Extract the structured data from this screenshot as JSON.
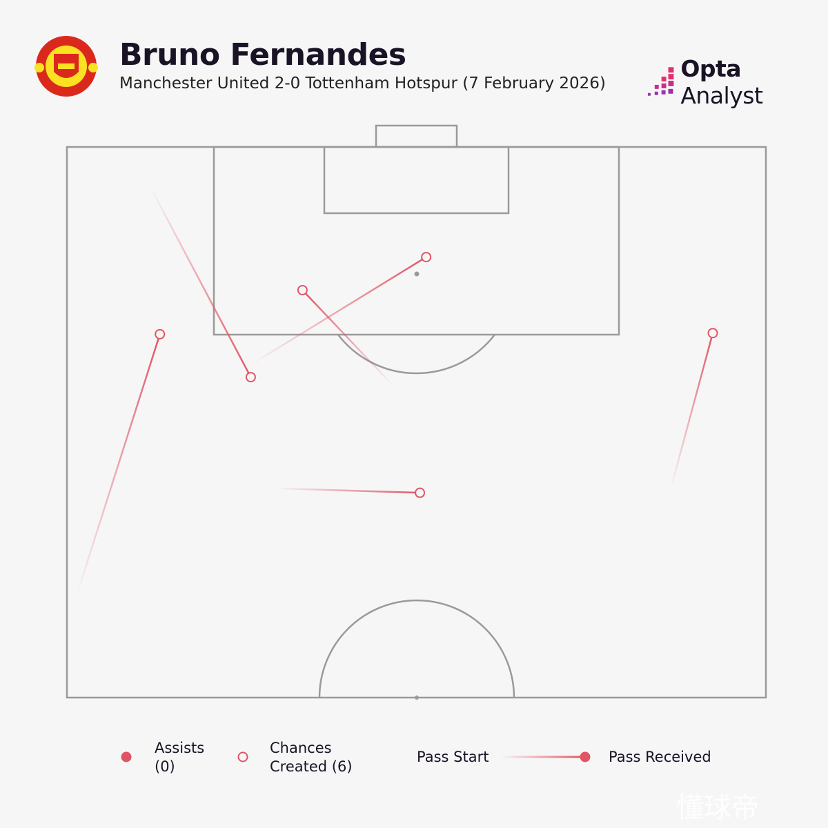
{
  "header": {
    "title": "Bruno Fernandes",
    "subtitle": "Manchester United 2-0 Tottenham Hotspur (7 February 2026)",
    "club_crest": "Manchester United crest",
    "crest_text": [
      "MANCHESTER",
      "UNITED"
    ],
    "brand_bold": "Opta",
    "brand_light": "Analyst"
  },
  "legend": {
    "assists_line1": "Assists",
    "assists_line2": "(0)",
    "chances_line1": "Chances",
    "chances_line2": "Created (6)",
    "pass_start": "Pass Start",
    "pass_received": "Pass Received"
  },
  "colors": {
    "accent": "#e05565",
    "pitch_lines": "#9a9a9a",
    "background": "#f6f6f6"
  },
  "watermark": "懂球帝",
  "chart_data": {
    "type": "pass map",
    "pitch_view": "attacking half, vertical",
    "coordinate_system": "Opta 0-100 (x = length toward goal, y = width)",
    "xlim": [
      50,
      100
    ],
    "ylim": [
      0,
      100
    ],
    "assists": 0,
    "chances_created": 6,
    "passes": [
      {
        "type": "chance",
        "start": {
          "x": 96.4,
          "y": 11.9
        },
        "end": {
          "x": 79.1,
          "y": 26.3
        }
      },
      {
        "type": "chance",
        "start": {
          "x": 80.3,
          "y": 26.5
        },
        "end": {
          "x": 90.0,
          "y": 51.4
        }
      },
      {
        "type": "chance",
        "start": {
          "x": 78.3,
          "y": 46.7
        },
        "end": {
          "x": 87.0,
          "y": 33.7
        }
      },
      {
        "type": "chance",
        "start": {
          "x": 59.1,
          "y": 1.3
        },
        "end": {
          "x": 83.0,
          "y": 13.3
        }
      },
      {
        "type": "chance",
        "start": {
          "x": 69.0,
          "y": 29.9
        },
        "end": {
          "x": 68.6,
          "y": 50.5
        }
      },
      {
        "type": "chance",
        "start": {
          "x": 69.0,
          "y": 86.4
        },
        "end": {
          "x": 83.1,
          "y": 92.4
        }
      }
    ]
  }
}
